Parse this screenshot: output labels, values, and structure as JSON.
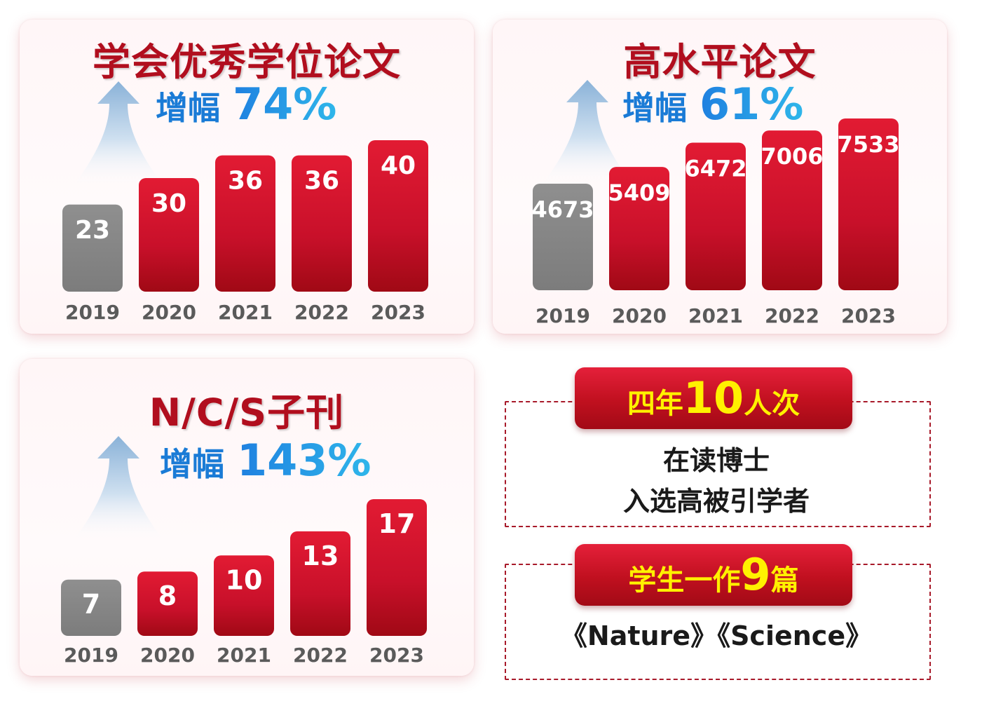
{
  "colors": {
    "bar_red": "#c8102a",
    "bar_gray": "#8a8a8a",
    "title_red": "#b10e1e",
    "growth_blue": "#1a7bd6",
    "ribbon_text": "#fff100"
  },
  "icons": {
    "growth_arrow": "up-arrow-icon"
  },
  "panels": [
    {
      "title": "学会优秀学位论文",
      "growth_label": "增幅",
      "growth_value": "74%"
    },
    {
      "title": "高水平论文",
      "growth_label": "增幅",
      "growth_value": "61%"
    },
    {
      "title": "N/C/S子刊",
      "growth_label": "增幅",
      "growth_value": "143%"
    }
  ],
  "chart_data": [
    {
      "type": "bar",
      "title": "学会优秀学位论文",
      "categories": [
        "2019",
        "2020",
        "2021",
        "2022",
        "2023"
      ],
      "values": [
        23,
        30,
        36,
        36,
        40
      ],
      "ylim": [
        0,
        40
      ],
      "grid": false
    },
    {
      "type": "bar",
      "title": "高水平论文",
      "categories": [
        "2019",
        "2020",
        "2021",
        "2022",
        "2023"
      ],
      "values": [
        4673,
        5409,
        6472,
        7006,
        7533
      ],
      "ylim": [
        0,
        7533
      ],
      "grid": false
    },
    {
      "type": "bar",
      "title": "N/C/S子刊",
      "categories": [
        "2019",
        "2020",
        "2021",
        "2022",
        "2023"
      ],
      "values": [
        7,
        8,
        10,
        13,
        17
      ],
      "ylim": [
        0,
        17
      ],
      "grid": false
    }
  ],
  "callouts": [
    {
      "ribbon_part1": "四年",
      "ribbon_number": "10",
      "ribbon_part2": "人次",
      "line1": "在读博士",
      "line2": "入选高被引学者"
    },
    {
      "ribbon_part1": "学生一作",
      "ribbon_number": "9",
      "ribbon_part2": "篇",
      "line1": "《Nature》《Science》"
    }
  ]
}
